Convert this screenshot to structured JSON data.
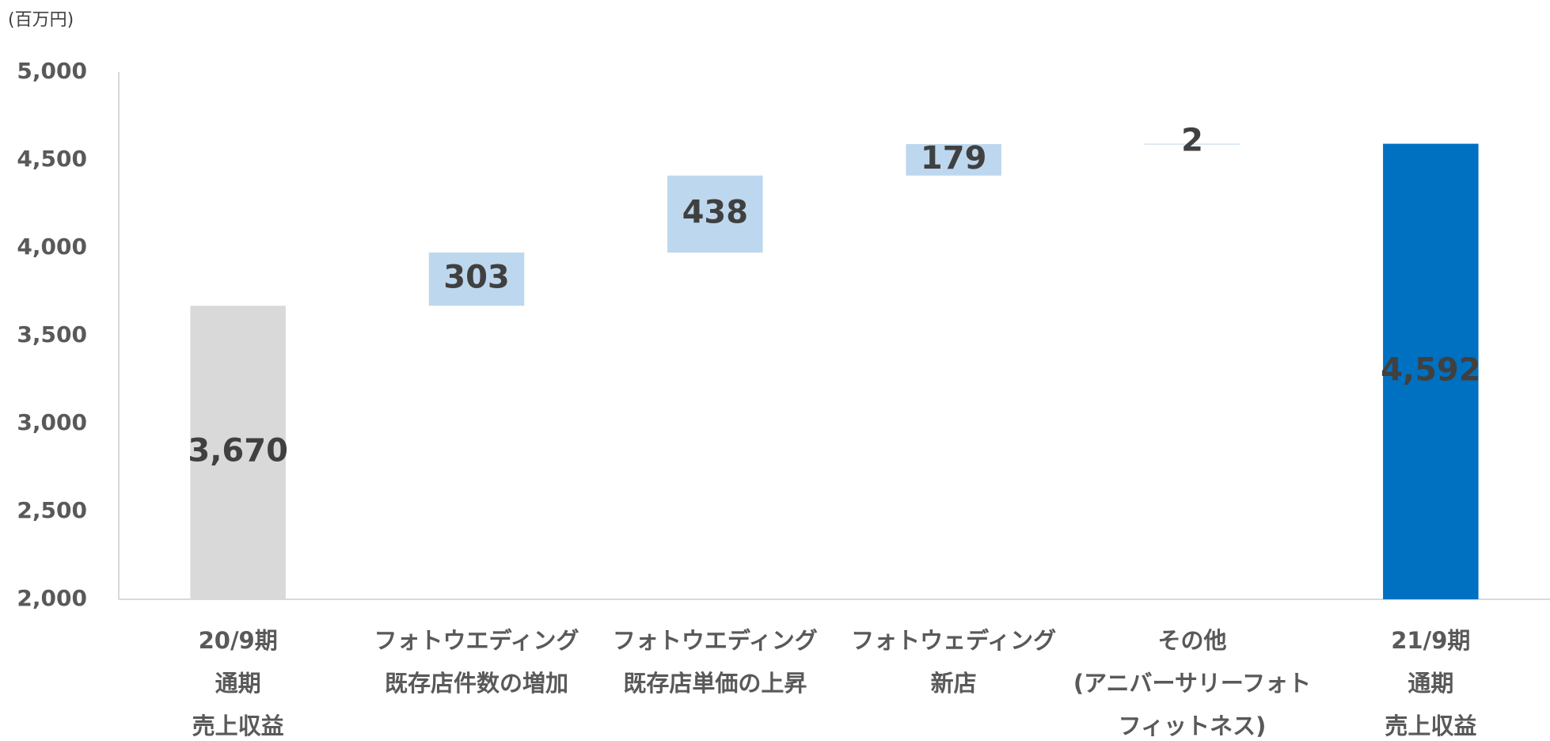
{
  "chart_data": {
    "type": "waterfall",
    "unit": "(百万円)",
    "categories": [
      [
        "20/9期",
        "通期",
        "売上収益"
      ],
      [
        "フォトウエディング",
        "既存店件数の増加"
      ],
      [
        "フォトウエディング",
        "既存店単価の上昇"
      ],
      [
        "フォトウェディング",
        "新店"
      ],
      [
        "その他",
        "(アニバーサリーフォト",
        "フィットネス)"
      ],
      [
        "21/9期",
        "通期",
        "売上収益"
      ]
    ],
    "values": [
      3670,
      303,
      438,
      179,
      2,
      4592
    ],
    "value_labels": [
      "3,670",
      "303",
      "438",
      "179",
      "2",
      "4,592"
    ],
    "measure": [
      "absolute",
      "relative",
      "relative",
      "relative",
      "relative",
      "total"
    ],
    "colors": [
      "#d9d9d9",
      "#bdd7ee",
      "#bdd7ee",
      "#bdd7ee",
      "#bdd7ee",
      "#0070c0"
    ],
    "label_colors": [
      "#404040",
      "#404040",
      "#404040",
      "#404040",
      "#404040",
      "#ffffff"
    ],
    "ylim": [
      2000,
      5000
    ],
    "yticks": [
      {
        "value": 2000,
        "label": "2,000"
      },
      {
        "value": 2500,
        "label": "2,500"
      },
      {
        "value": 3000,
        "label": "3,000"
      },
      {
        "value": 3500,
        "label": "3,500"
      },
      {
        "value": 4000,
        "label": "4,000"
      },
      {
        "value": 4500,
        "label": "4,500"
      },
      {
        "value": 5000,
        "label": "5,000"
      }
    ]
  }
}
